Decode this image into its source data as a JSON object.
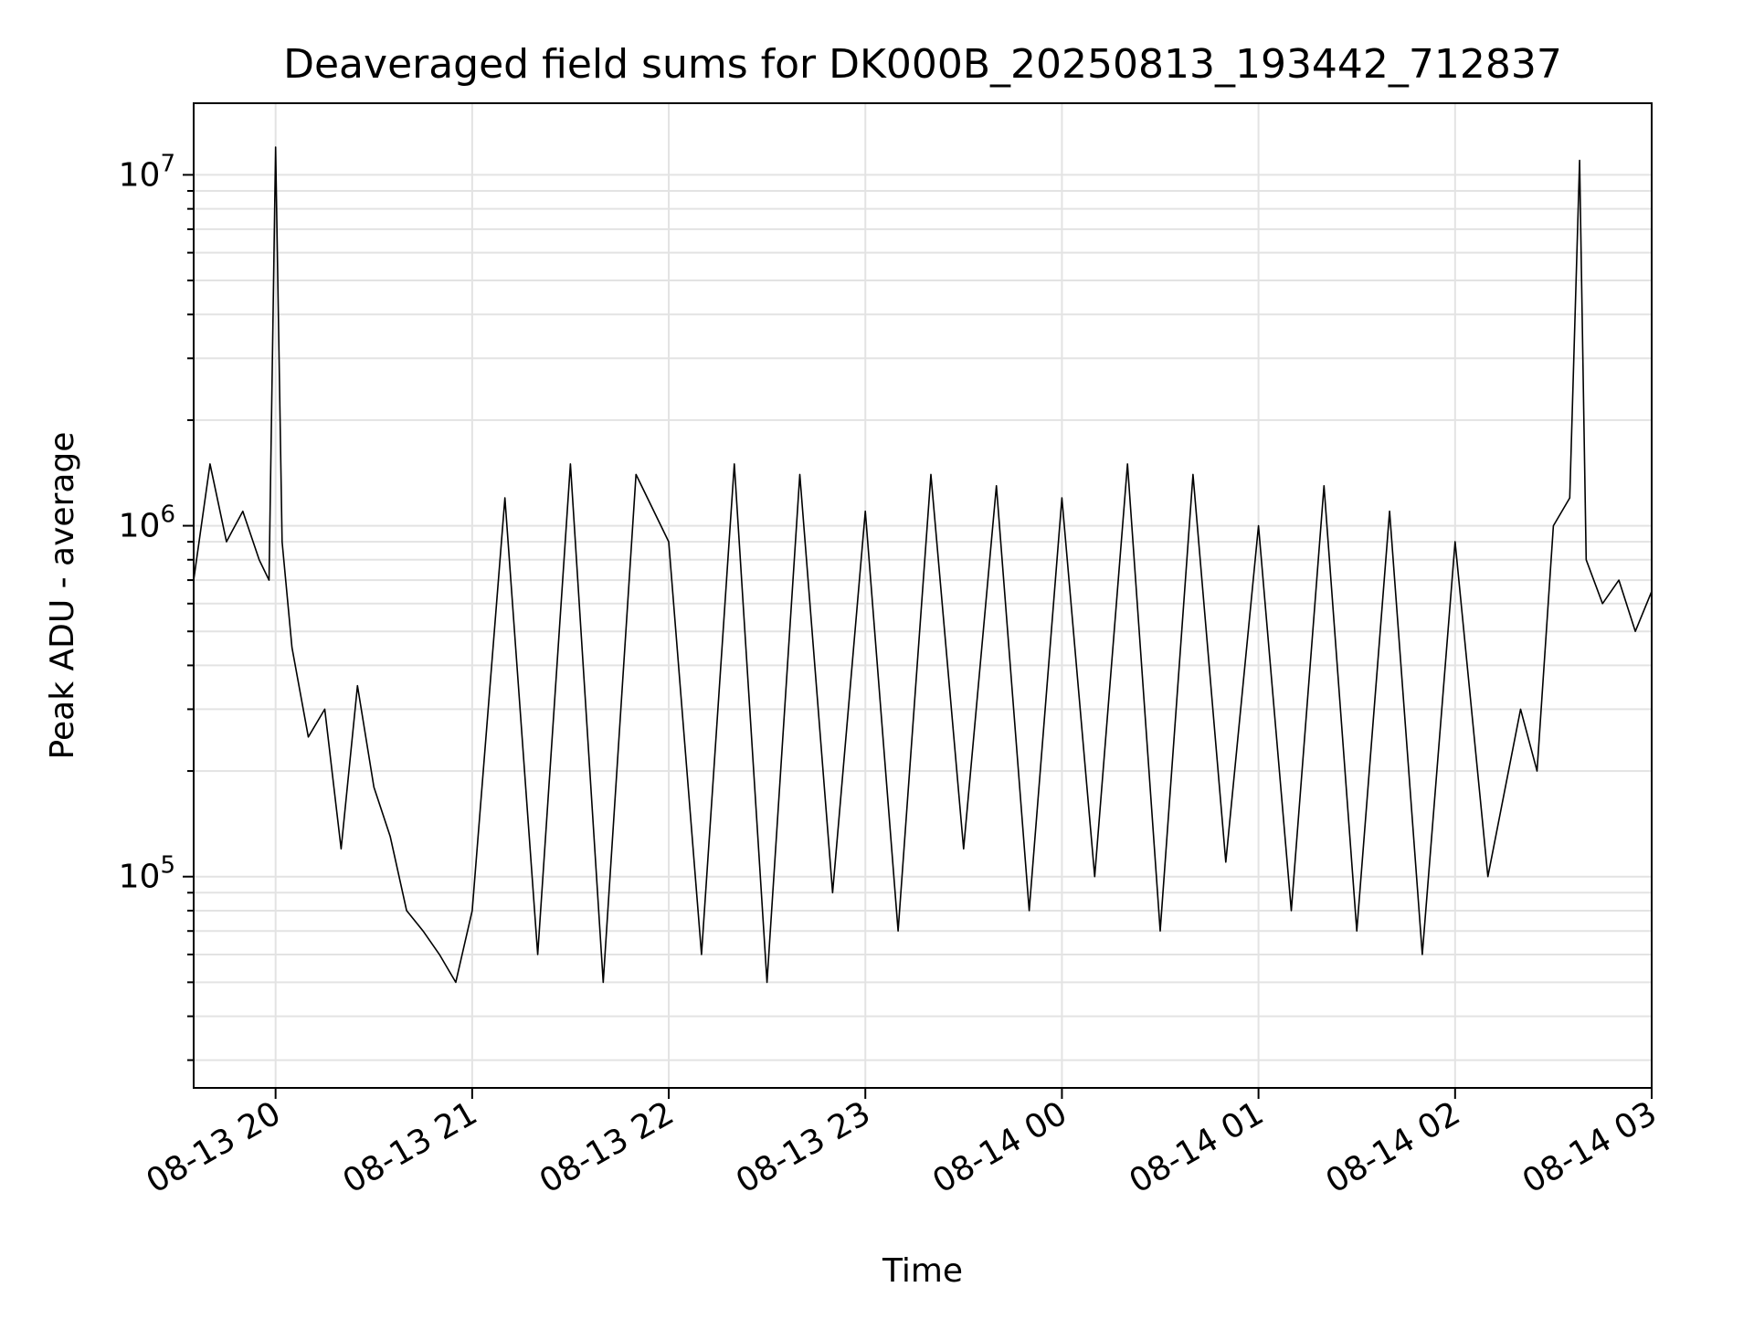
{
  "chart_data": {
    "type": "line",
    "title": "Deaveraged field sums for DK000B_20250813_193442_712837",
    "xlabel": "Time",
    "ylabel": "Peak ADU - average",
    "yscale": "log",
    "ylim": [
      25000,
      16000000
    ],
    "xlim": [
      "2025-08-13 19:35",
      "2025-08-14 03:00"
    ],
    "grid": true,
    "legend": "none",
    "colors": {
      "line": "#000000",
      "grid": "#e3e3e3",
      "axes": "#000000"
    },
    "x_ticks": [
      {
        "t": "2025-08-13 20:00",
        "label": "08-13 20"
      },
      {
        "t": "2025-08-13 21:00",
        "label": "08-13 21"
      },
      {
        "t": "2025-08-13 22:00",
        "label": "08-13 22"
      },
      {
        "t": "2025-08-13 23:00",
        "label": "08-13 23"
      },
      {
        "t": "2025-08-14 00:00",
        "label": "08-14 00"
      },
      {
        "t": "2025-08-14 01:00",
        "label": "08-14 01"
      },
      {
        "t": "2025-08-14 02:00",
        "label": "08-14 02"
      },
      {
        "t": "2025-08-14 03:00",
        "label": "08-14 03"
      }
    ],
    "y_ticks": [
      {
        "value": 100000,
        "base": "10",
        "exp": "5"
      },
      {
        "value": 1000000,
        "base": "10",
        "exp": "6"
      },
      {
        "value": 10000000,
        "base": "10",
        "exp": "7"
      }
    ],
    "series": [
      {
        "x": [
          "2025-08-13 19:35",
          "2025-08-13 19:40",
          "2025-08-13 19:45",
          "2025-08-13 19:50",
          "2025-08-13 19:55",
          "2025-08-13 19:58",
          "2025-08-13 20:00",
          "2025-08-13 20:02",
          "2025-08-13 20:05",
          "2025-08-13 20:10",
          "2025-08-13 20:15",
          "2025-08-13 20:20",
          "2025-08-13 20:25",
          "2025-08-13 20:30",
          "2025-08-13 20:35",
          "2025-08-13 20:40",
          "2025-08-13 20:45",
          "2025-08-13 20:50",
          "2025-08-13 20:55",
          "2025-08-13 21:00",
          "2025-08-13 21:10",
          "2025-08-13 21:20",
          "2025-08-13 21:30",
          "2025-08-13 21:40",
          "2025-08-13 21:50",
          "2025-08-13 22:00",
          "2025-08-13 22:10",
          "2025-08-13 22:20",
          "2025-08-13 22:30",
          "2025-08-13 22:40",
          "2025-08-13 22:50",
          "2025-08-13 23:00",
          "2025-08-13 23:10",
          "2025-08-13 23:20",
          "2025-08-13 23:30",
          "2025-08-13 23:40",
          "2025-08-13 23:50",
          "2025-08-14 00:00",
          "2025-08-14 00:10",
          "2025-08-14 00:20",
          "2025-08-14 00:30",
          "2025-08-14 00:40",
          "2025-08-14 00:50",
          "2025-08-14 01:00",
          "2025-08-14 01:10",
          "2025-08-14 01:20",
          "2025-08-14 01:30",
          "2025-08-14 01:40",
          "2025-08-14 01:50",
          "2025-08-14 02:00",
          "2025-08-14 02:10",
          "2025-08-14 02:20",
          "2025-08-14 02:25",
          "2025-08-14 02:30",
          "2025-08-14 02:35",
          "2025-08-14 02:38",
          "2025-08-14 02:40",
          "2025-08-14 02:45",
          "2025-08-14 02:50",
          "2025-08-14 02:55",
          "2025-08-14 03:00"
        ],
        "y": [
          700000,
          1500000,
          900000,
          1100000,
          800000,
          700000,
          12000000,
          900000,
          450000,
          250000,
          300000,
          120000,
          350000,
          180000,
          130000,
          80000,
          70000,
          60000,
          50000,
          80000,
          1200000,
          60000,
          1500000,
          50000,
          1400000,
          900000,
          60000,
          1500000,
          50000,
          1400000,
          90000,
          1100000,
          70000,
          1400000,
          120000,
          1300000,
          80000,
          1200000,
          100000,
          1500000,
          70000,
          1400000,
          110000,
          1000000,
          80000,
          1300000,
          70000,
          1100000,
          60000,
          900000,
          100000,
          300000,
          200000,
          1000000,
          1200000,
          11000000,
          800000,
          600000,
          700000,
          500000,
          650000
        ]
      }
    ]
  }
}
